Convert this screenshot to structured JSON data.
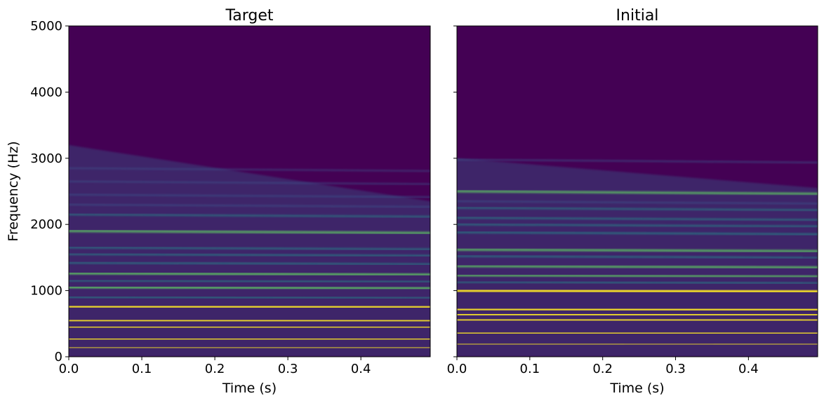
{
  "chart_data": [
    {
      "type": "heatmap",
      "subtype": "spectrogram",
      "title": "Target",
      "xlabel": "Time (s)",
      "ylabel": "Frequency (Hz)",
      "xlim": [
        0.0,
        0.495
      ],
      "ylim": [
        0,
        5000
      ],
      "xticks": [
        0.0,
        0.1,
        0.2,
        0.3,
        0.4
      ],
      "xtick_labels": [
        "0.0",
        "0.1",
        "0.2",
        "0.3",
        "0.4"
      ],
      "yticks": [
        0,
        1000,
        2000,
        3000,
        4000,
        5000
      ],
      "ytick_labels": [
        "0",
        "1000",
        "2000",
        "3000",
        "4000",
        "5000"
      ],
      "colormap": "viridis",
      "background_color": "#440154",
      "band_colors": [
        "#fde725",
        "#5ec962",
        "#21918c",
        "#3b528b"
      ],
      "energy_envelope": {
        "top_hz_at_start": 3200,
        "top_hz_at_end": 2350
      },
      "harmonics": [
        {
          "freq_hz": 140,
          "level": 1.0
        },
        {
          "freq_hz": 270,
          "level": 0.98
        },
        {
          "freq_hz": 450,
          "level": 0.92
        },
        {
          "freq_hz": 550,
          "level": 0.9
        },
        {
          "freq_hz": 760,
          "level": 0.9
        },
        {
          "freq_hz": 900,
          "level": 0.5
        },
        {
          "freq_hz": 1050,
          "level": 0.75
        },
        {
          "freq_hz": 1150,
          "level": 0.4
        },
        {
          "freq_hz": 1260,
          "level": 0.7
        },
        {
          "freq_hz": 1420,
          "level": 0.45
        },
        {
          "freq_hz": 1550,
          "level": 0.45
        },
        {
          "freq_hz": 1650,
          "level": 0.4
        },
        {
          "freq_hz": 1900,
          "level": 0.6
        },
        {
          "freq_hz": 2150,
          "level": 0.35
        },
        {
          "freq_hz": 2300,
          "level": 0.3
        },
        {
          "freq_hz": 2450,
          "level": 0.28
        },
        {
          "freq_hz": 2650,
          "level": 0.22
        },
        {
          "freq_hz": 2850,
          "level": 0.18
        }
      ]
    },
    {
      "type": "heatmap",
      "subtype": "spectrogram",
      "title": "Initial",
      "xlabel": "Time (s)",
      "ylabel": "",
      "xlim": [
        0.0,
        0.495
      ],
      "ylim": [
        0,
        5000
      ],
      "xticks": [
        0.0,
        0.1,
        0.2,
        0.3,
        0.4
      ],
      "xtick_labels": [
        "0.0",
        "0.1",
        "0.2",
        "0.3",
        "0.4"
      ],
      "yticks": [
        0,
        1000,
        2000,
        3000,
        4000,
        5000
      ],
      "ytick_labels": [],
      "colormap": "viridis",
      "background_color": "#440154",
      "band_colors": [
        "#fde725",
        "#5ec962",
        "#21918c",
        "#3b528b"
      ],
      "energy_envelope": {
        "top_hz_at_start": 3000,
        "top_hz_at_end": 2550
      },
      "harmonics": [
        {
          "freq_hz": 190,
          "level": 1.0
        },
        {
          "freq_hz": 360,
          "level": 0.95
        },
        {
          "freq_hz": 560,
          "level": 0.9
        },
        {
          "freq_hz": 640,
          "level": 0.85
        },
        {
          "freq_hz": 720,
          "level": 0.88
        },
        {
          "freq_hz": 1000,
          "level": 0.85
        },
        {
          "freq_hz": 1130,
          "level": 0.45
        },
        {
          "freq_hz": 1230,
          "level": 0.55
        },
        {
          "freq_hz": 1370,
          "level": 0.6
        },
        {
          "freq_hz": 1520,
          "level": 0.45
        },
        {
          "freq_hz": 1620,
          "level": 0.6
        },
        {
          "freq_hz": 1880,
          "level": 0.5
        },
        {
          "freq_hz": 2000,
          "level": 0.4
        },
        {
          "freq_hz": 2100,
          "level": 0.38
        },
        {
          "freq_hz": 2250,
          "level": 0.35
        },
        {
          "freq_hz": 2350,
          "level": 0.3
        },
        {
          "freq_hz": 2500,
          "level": 0.55
        },
        {
          "freq_hz": 2980,
          "level": 0.3
        }
      ]
    }
  ]
}
